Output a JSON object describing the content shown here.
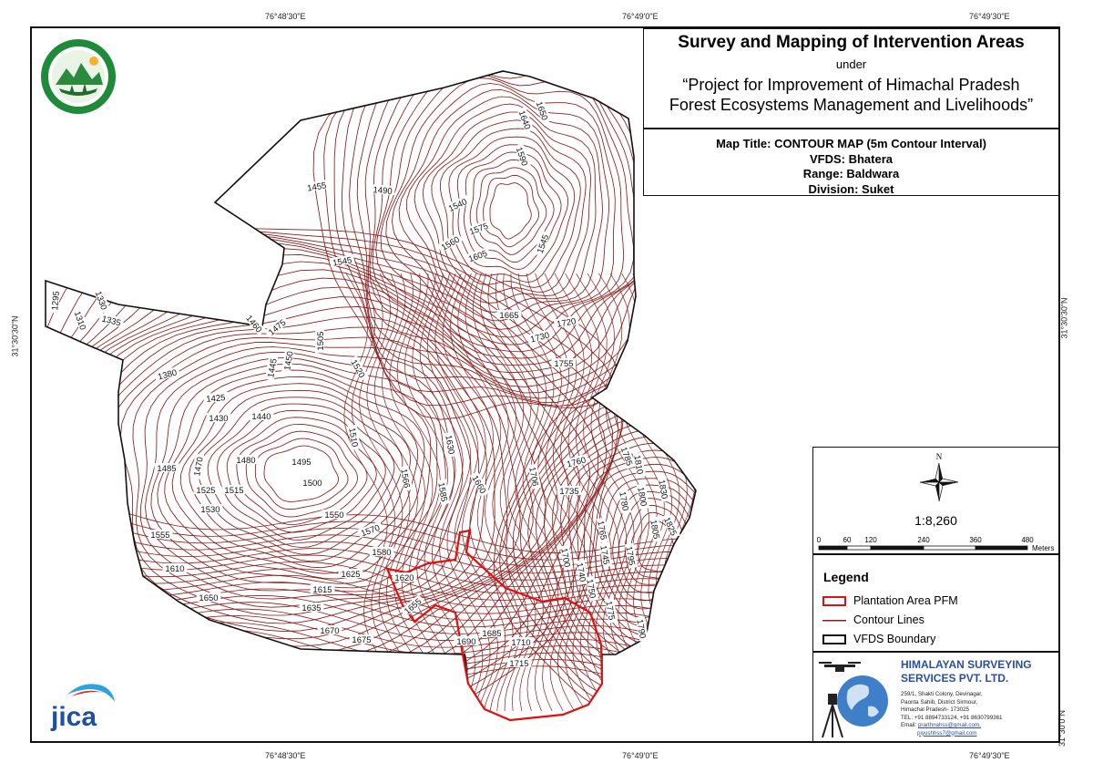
{
  "title": {
    "main": "Survey and Mapping of Intervention Areas",
    "under": "under",
    "project_line1": "“Project for Improvement of Himachal Pradesh",
    "project_line2": "Forest Ecosystems Management and Livelihoods”"
  },
  "map_info": {
    "map_title": "Map Title: CONTOUR MAP (5m Contour Interval)",
    "vfds": "VFDS: Bhatera",
    "range": "Range: Baldwara",
    "division": "Division: Suket"
  },
  "coordinates": {
    "top": [
      "76°48'30\"E",
      "76°49'0\"E",
      "76°49'30\"E"
    ],
    "bottom": [
      "76°48'30\"E",
      "76°49'0\"E",
      "76°49'30\"E"
    ],
    "left": [
      "31°30'30\"N"
    ],
    "right": [
      "31°30'30\"N",
      "31°30'0\"N"
    ]
  },
  "north_arrow": {
    "label": "N",
    "icon": "compass-star-icon"
  },
  "scale": {
    "ratio": "1:8,260",
    "ticks": [
      "0",
      "60",
      "120",
      "240",
      "360",
      "480"
    ],
    "unit": "Meters"
  },
  "legend": {
    "title": "Legend",
    "items": [
      {
        "label": "Plantation Area PFM",
        "color": "#e01010"
      },
      {
        "label": "Contour Lines",
        "color": "#8b1a1a"
      },
      {
        "label": "VFDS Boundary",
        "color": "#111111"
      }
    ]
  },
  "company": {
    "name_line1": "HIMALAYAN SURVEYING",
    "name_line2": "SERVICES PVT. LTD.",
    "address": [
      "259/1, Shakti Colony, Devinagar,",
      "Paonta Sahib, District Sirmour,",
      "Himachal Pradesh- 173025"
    ],
    "tel": "TEL: +91 8894733124, +91 8630799361",
    "email_label": "Email:",
    "email1": "prarthnahss@gmail.com,",
    "email2": "piyushhss7@gmail.com"
  },
  "logos": {
    "jica": "JICA",
    "hp_forest": "hp-forest-department-seal"
  },
  "contour_labels": [
    [
      "1650",
      594,
      122,
      70
    ],
    [
      "1640",
      575,
      132,
      70
    ],
    [
      "1590",
      572,
      172,
      70
    ],
    [
      "1545",
      597,
      268,
      -70
    ],
    [
      "1455",
      348,
      206,
      -10
    ],
    [
      "1490",
      420,
      210,
      5
    ],
    [
      "1540",
      503,
      226,
      -25
    ],
    [
      "1575",
      526,
      252,
      -20
    ],
    [
      "1560",
      495,
      268,
      -30
    ],
    [
      "1605",
      525,
      282,
      -20
    ],
    [
      "1545",
      376,
      288,
      -10
    ],
    [
      "1295",
      62,
      330,
      -85
    ],
    [
      "1330",
      110,
      330,
      70
    ],
    [
      "1310",
      87,
      352,
      70
    ],
    [
      "1335",
      122,
      353,
      15
    ],
    [
      "1460",
      278,
      356,
      50
    ],
    [
      "1475",
      305,
      360,
      -40
    ],
    [
      "1505",
      353,
      374,
      -90
    ],
    [
      "1665",
      559,
      347,
      0
    ],
    [
      "1720",
      622,
      355,
      -10
    ],
    [
      "1730",
      593,
      371,
      -15
    ],
    [
      "1450",
      318,
      396,
      -80
    ],
    [
      "1445",
      300,
      404,
      -80
    ],
    [
      "1520",
      392,
      405,
      60
    ],
    [
      "1755",
      619,
      400,
      0
    ],
    [
      "1380",
      184,
      412,
      -15
    ],
    [
      "1425",
      237,
      438,
      -5
    ],
    [
      "1430",
      240,
      460,
      0
    ],
    [
      "1440",
      287,
      458,
      0
    ],
    [
      "1510",
      387,
      480,
      80
    ],
    [
      "1630",
      493,
      488,
      80
    ],
    [
      "1760",
      633,
      508,
      -15
    ],
    [
      "1785",
      687,
      501,
      70
    ],
    [
      "1810",
      700,
      510,
      80
    ],
    [
      "1830",
      727,
      537,
      80
    ],
    [
      "1485",
      183,
      515,
      0
    ],
    [
      "1470",
      219,
      512,
      -80
    ],
    [
      "1480",
      270,
      506,
      0
    ],
    [
      "1495",
      331,
      508,
      0
    ],
    [
      "1566",
      444,
      525,
      80
    ],
    [
      "1585",
      485,
      540,
      80
    ],
    [
      "1660",
      525,
      532,
      60
    ],
    [
      "1706",
      585,
      523,
      80
    ],
    [
      "1500",
      343,
      531,
      0
    ],
    [
      "1525",
      226,
      539,
      0
    ],
    [
      "1515",
      257,
      539,
      0
    ],
    [
      "1735",
      625,
      540,
      0
    ],
    [
      "1780",
      684,
      550,
      80
    ],
    [
      "1800",
      704,
      545,
      80
    ],
    [
      "1530",
      231,
      560,
      0
    ],
    [
      "1550",
      367,
      566,
      0
    ],
    [
      "1805",
      718,
      581,
      80
    ],
    [
      "1825",
      735,
      578,
      65
    ],
    [
      "1555",
      176,
      588,
      0
    ],
    [
      "1570",
      407,
      583,
      -20
    ],
    [
      "1765",
      660,
      582,
      80
    ],
    [
      "1580",
      419,
      607,
      0
    ],
    [
      "1700",
      620,
      612,
      80
    ],
    [
      "1745",
      663,
      609,
      80
    ],
    [
      "1610",
      192,
      625,
      0
    ],
    [
      "1625",
      385,
      631,
      0
    ],
    [
      "1620",
      444,
      635,
      0
    ],
    [
      "1740",
      637,
      628,
      80
    ],
    [
      "1795",
      691,
      610,
      80
    ],
    [
      "1615",
      354,
      648,
      0
    ],
    [
      "1750",
      648,
      646,
      80
    ],
    [
      "1650",
      229,
      657,
      0
    ],
    [
      "1655",
      454,
      666,
      -40
    ],
    [
      "1635",
      342,
      668,
      0
    ],
    [
      "1775",
      669,
      670,
      80
    ],
    [
      "1790",
      703,
      690,
      80
    ],
    [
      "1670",
      362,
      693,
      0
    ],
    [
      "1675",
      397,
      703,
      0
    ],
    [
      "1685",
      540,
      696,
      0
    ],
    [
      "1690",
      512,
      705,
      0
    ],
    [
      "1710",
      572,
      706,
      0
    ],
    [
      "1715",
      570,
      729,
      0
    ]
  ]
}
